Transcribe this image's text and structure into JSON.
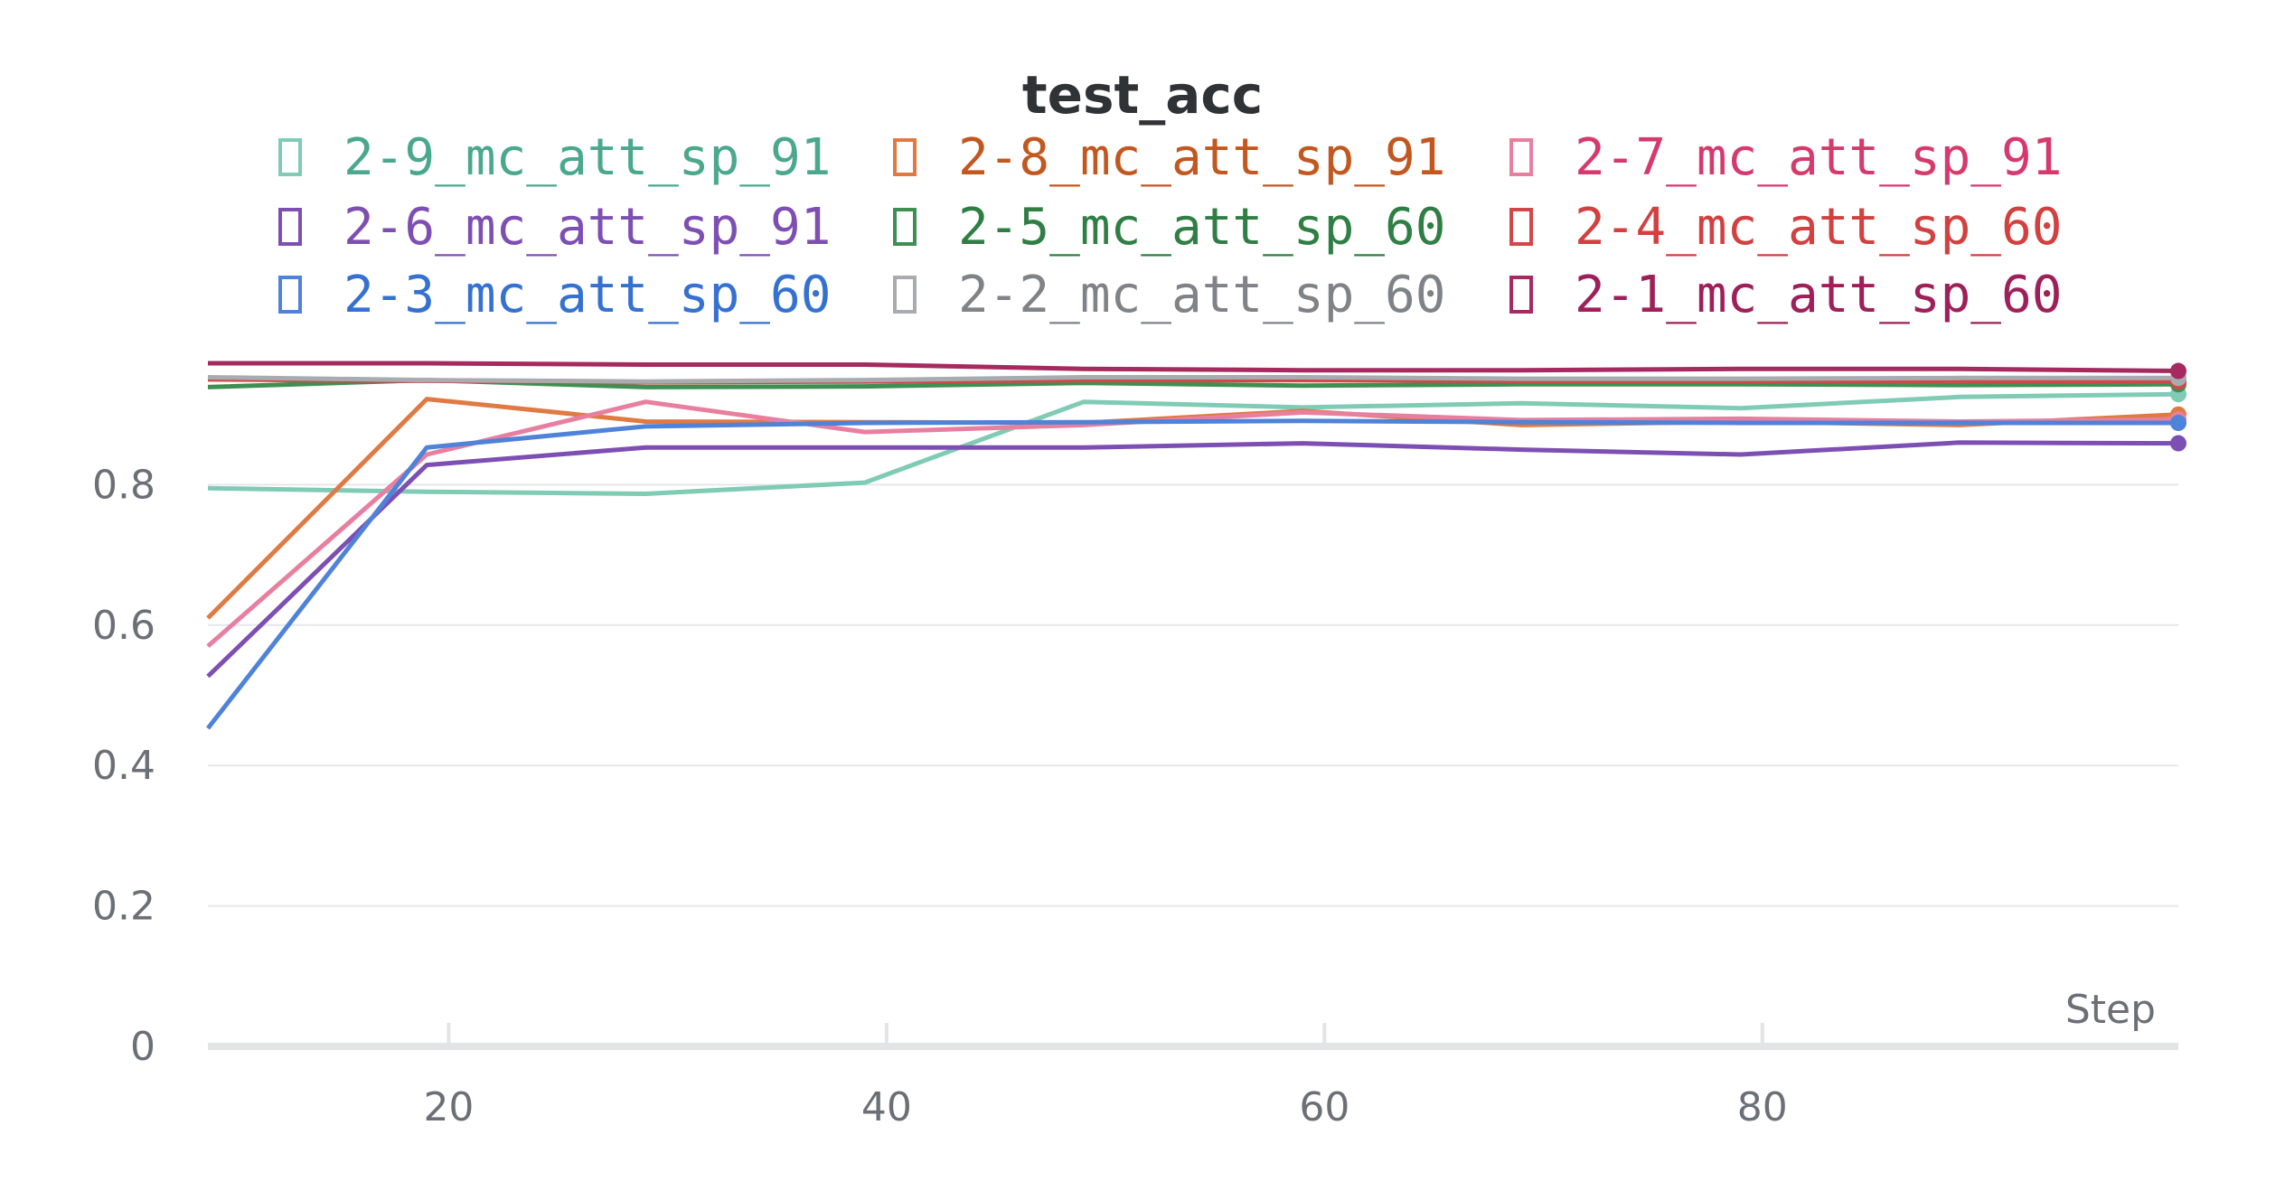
{
  "chart_data": {
    "type": "line",
    "title": "test_acc",
    "xlabel": "Step",
    "ylabel": "",
    "xlim": [
      9,
      99
    ],
    "ylim": [
      0,
      1
    ],
    "x_ticks": [
      20,
      40,
      60,
      80
    ],
    "y_ticks": [
      0,
      0.2,
      0.4,
      0.6,
      0.8
    ],
    "y_tick_labels": [
      "0",
      "0.2",
      "0.4",
      "0.6",
      "0.8"
    ],
    "grid": "horizontal",
    "legend": "top",
    "x": [
      9,
      19,
      29,
      39,
      49,
      59,
      69,
      79,
      89,
      99
    ],
    "series": [
      {
        "name": "2-9_mc_att_sp_91",
        "color": "#7fcbb5",
        "text_color": "#4aa88d",
        "values": [
          0.795,
          0.79,
          0.787,
          0.803,
          0.918,
          0.91,
          0.916,
          0.909,
          0.925,
          0.929
        ]
      },
      {
        "name": "2-8_mc_att_sp_91",
        "color": "#e07a43",
        "text_color": "#c2571f",
        "values": [
          0.61,
          0.922,
          0.89,
          0.889,
          0.888,
          0.905,
          0.885,
          0.89,
          0.885,
          0.9
        ]
      },
      {
        "name": "2-7_mc_att_sp_91",
        "color": "#e87fa0",
        "text_color": "#d63a6d",
        "values": [
          0.57,
          0.843,
          0.918,
          0.875,
          0.885,
          0.903,
          0.892,
          0.894,
          0.89,
          0.893
        ]
      },
      {
        "name": "2-6_mc_att_sp_91",
        "color": "#7e4fb3",
        "text_color": "#7e4fb3",
        "values": [
          0.527,
          0.828,
          0.853,
          0.853,
          0.853,
          0.859,
          0.85,
          0.843,
          0.86,
          0.859
        ]
      },
      {
        "name": "2-5_mc_att_sp_60",
        "color": "#3d8f52",
        "text_color": "#2f7f45",
        "values": [
          0.939,
          0.949,
          0.939,
          0.94,
          0.945,
          0.941,
          0.943,
          0.943,
          0.942,
          0.943
        ]
      },
      {
        "name": "2-4_mc_att_sp_60",
        "color": "#d24848",
        "text_color": "#d24040",
        "values": [
          0.95,
          0.948,
          0.946,
          0.947,
          0.949,
          0.949,
          0.948,
          0.948,
          0.948,
          0.947
        ]
      },
      {
        "name": "2-3_mc_att_sp_60",
        "color": "#4f82d9",
        "text_color": "#3571d1",
        "values": [
          0.453,
          0.853,
          0.883,
          0.888,
          0.889,
          0.891,
          0.889,
          0.888,
          0.888,
          0.888
        ]
      },
      {
        "name": "2-2_mc_att_sp_60",
        "color": "#a8acb0",
        "text_color": "#7f8388",
        "values": [
          0.953,
          0.949,
          0.947,
          0.949,
          0.953,
          0.953,
          0.951,
          0.951,
          0.952,
          0.952
        ]
      },
      {
        "name": "2-1_mc_att_sp_60",
        "color": "#a52a5f",
        "text_color": "#9e1f59",
        "values": [
          0.973,
          0.973,
          0.971,
          0.971,
          0.965,
          0.963,
          0.963,
          0.965,
          0.965,
          0.962
        ]
      }
    ]
  }
}
